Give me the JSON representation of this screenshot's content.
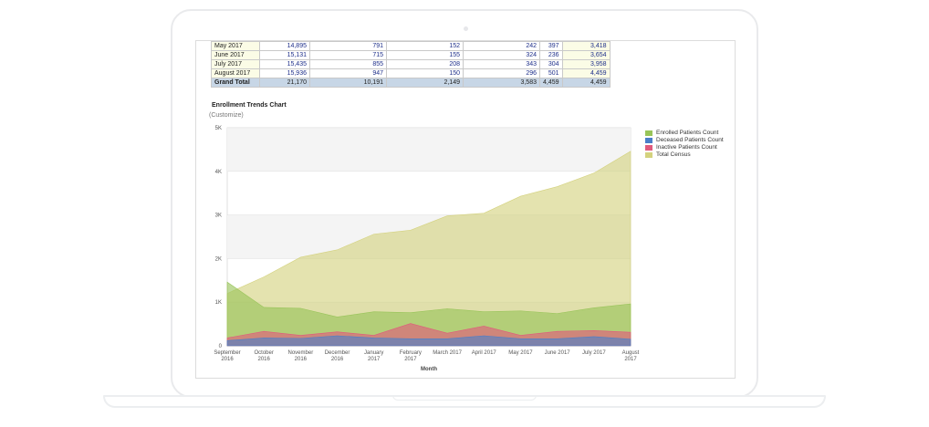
{
  "table": {
    "rows": [
      {
        "month": "May 2017",
        "c1": "14,895",
        "c2": "791",
        "c3": "152",
        "c4": "242",
        "c5": "397",
        "c6": "3,418"
      },
      {
        "month": "June 2017",
        "c1": "15,131",
        "c2": "715",
        "c3": "155",
        "c4": "324",
        "c5": "236",
        "c6": "3,654"
      },
      {
        "month": "July 2017",
        "c1": "15,435",
        "c2": "855",
        "c3": "208",
        "c4": "343",
        "c5": "304",
        "c6": "3,958"
      },
      {
        "month": "August 2017",
        "c1": "15,936",
        "c2": "947",
        "c3": "150",
        "c4": "296",
        "c5": "501",
        "c6": "4,459"
      }
    ],
    "total": {
      "month": "Grand Total",
      "c1": "21,170",
      "c2": "10,191",
      "c3": "2,149",
      "c4": "3,583",
      "c5": "4,459",
      "c6": "4,459"
    }
  },
  "chart_section": {
    "title": "Enrollment Trends Chart",
    "customize_label": "(Customize)"
  },
  "chart_data": {
    "type": "area",
    "xlabel": "Month",
    "ylabel": "",
    "ylim": [
      0,
      5000
    ],
    "yticks": [
      0,
      1000,
      2000,
      3000,
      4000,
      5000
    ],
    "ytick_labels": [
      "0",
      "1K",
      "2K",
      "3K",
      "4K",
      "5K"
    ],
    "categories": [
      [
        "September",
        "2016"
      ],
      [
        "October",
        "2016"
      ],
      [
        "November",
        "2016"
      ],
      [
        "December",
        "2016"
      ],
      [
        "January",
        "2017"
      ],
      [
        "February",
        "2017"
      ],
      [
        "March 2017"
      ],
      [
        "April 2017"
      ],
      [
        "May 2017"
      ],
      [
        "June 2017"
      ],
      [
        "July 2017"
      ],
      [
        "August",
        "2017"
      ]
    ],
    "grid": "horizontal bands",
    "legend_position": "right",
    "series": [
      {
        "name": "Total Census",
        "color": "#d4d27e",
        "values": [
          1200,
          1580,
          2030,
          2200,
          2560,
          2650,
          2980,
          3040,
          3430,
          3650,
          3960,
          4460
        ]
      },
      {
        "name": "Enrolled Patients Count",
        "color": "#98c459",
        "values": [
          1460,
          880,
          860,
          660,
          780,
          760,
          850,
          780,
          800,
          740,
          870,
          960
        ]
      },
      {
        "name": "Inactive Patients Count",
        "color": "#e05a7d",
        "values": [
          180,
          330,
          240,
          320,
          240,
          510,
          290,
          450,
          240,
          330,
          350,
          310
        ]
      },
      {
        "name": "Deceased Patients Count",
        "color": "#4a7fc9",
        "values": [
          120,
          180,
          170,
          230,
          180,
          160,
          160,
          230,
          160,
          160,
          210,
          150
        ]
      }
    ],
    "legend": [
      {
        "name": "Enrolled Patients Count",
        "color": "#98c459"
      },
      {
        "name": "Deceased Patients Count",
        "color": "#4a7fc9"
      },
      {
        "name": "Inactive Patients Count",
        "color": "#e05a7d"
      },
      {
        "name": "Total Census",
        "color": "#d4d27e"
      }
    ]
  }
}
